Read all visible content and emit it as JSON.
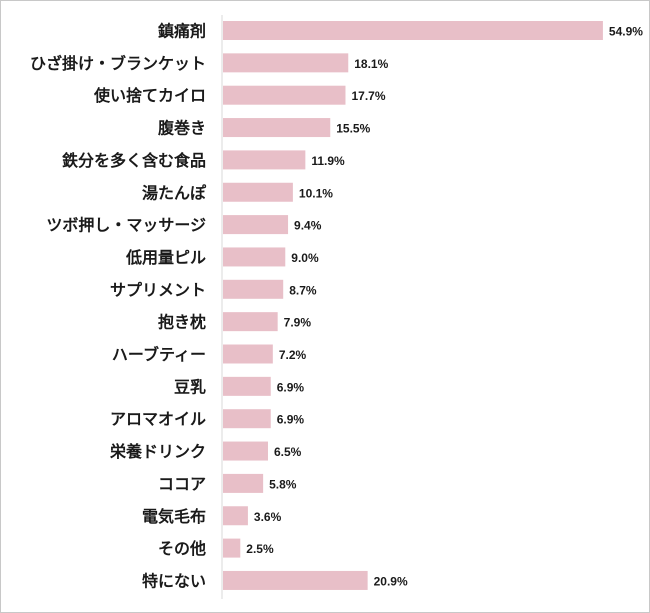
{
  "chart_data": {
    "type": "bar",
    "orientation": "horizontal",
    "title": "",
    "xlabel": "",
    "ylabel": "",
    "unit": "%",
    "xlim": [
      0,
      70
    ],
    "grid": false,
    "legend": "none",
    "bar_color": "#e8bfc8",
    "categories": [
      "鎮痛剤",
      "ひざ掛け・ブランケット",
      "使い捨てカイロ",
      "腹巻き",
      "鉄分を多く含む食品",
      "湯たんぽ",
      "ツボ押し・マッサージ",
      "低用量ピル",
      "サプリメント",
      "抱き枕",
      "ハーブティー",
      "豆乳",
      "アロマオイル",
      "栄養ドリンク",
      "ココア",
      "電気毛布",
      "その他",
      "特にない"
    ],
    "values": [
      54.9,
      18.1,
      17.7,
      15.5,
      11.9,
      10.1,
      9.4,
      9.0,
      8.7,
      7.9,
      7.2,
      6.9,
      6.9,
      6.5,
      5.8,
      3.6,
      2.5,
      20.9
    ],
    "value_labels": [
      "54.9%",
      "18.1%",
      "17.7%",
      "15.5%",
      "11.9%",
      "10.1%",
      "9.4%",
      "9.0%",
      "8.7%",
      "7.9%",
      "7.2%",
      "6.9%",
      "6.9%",
      "6.5%",
      "5.8%",
      "3.6%",
      "2.5%",
      "20.9%"
    ]
  }
}
